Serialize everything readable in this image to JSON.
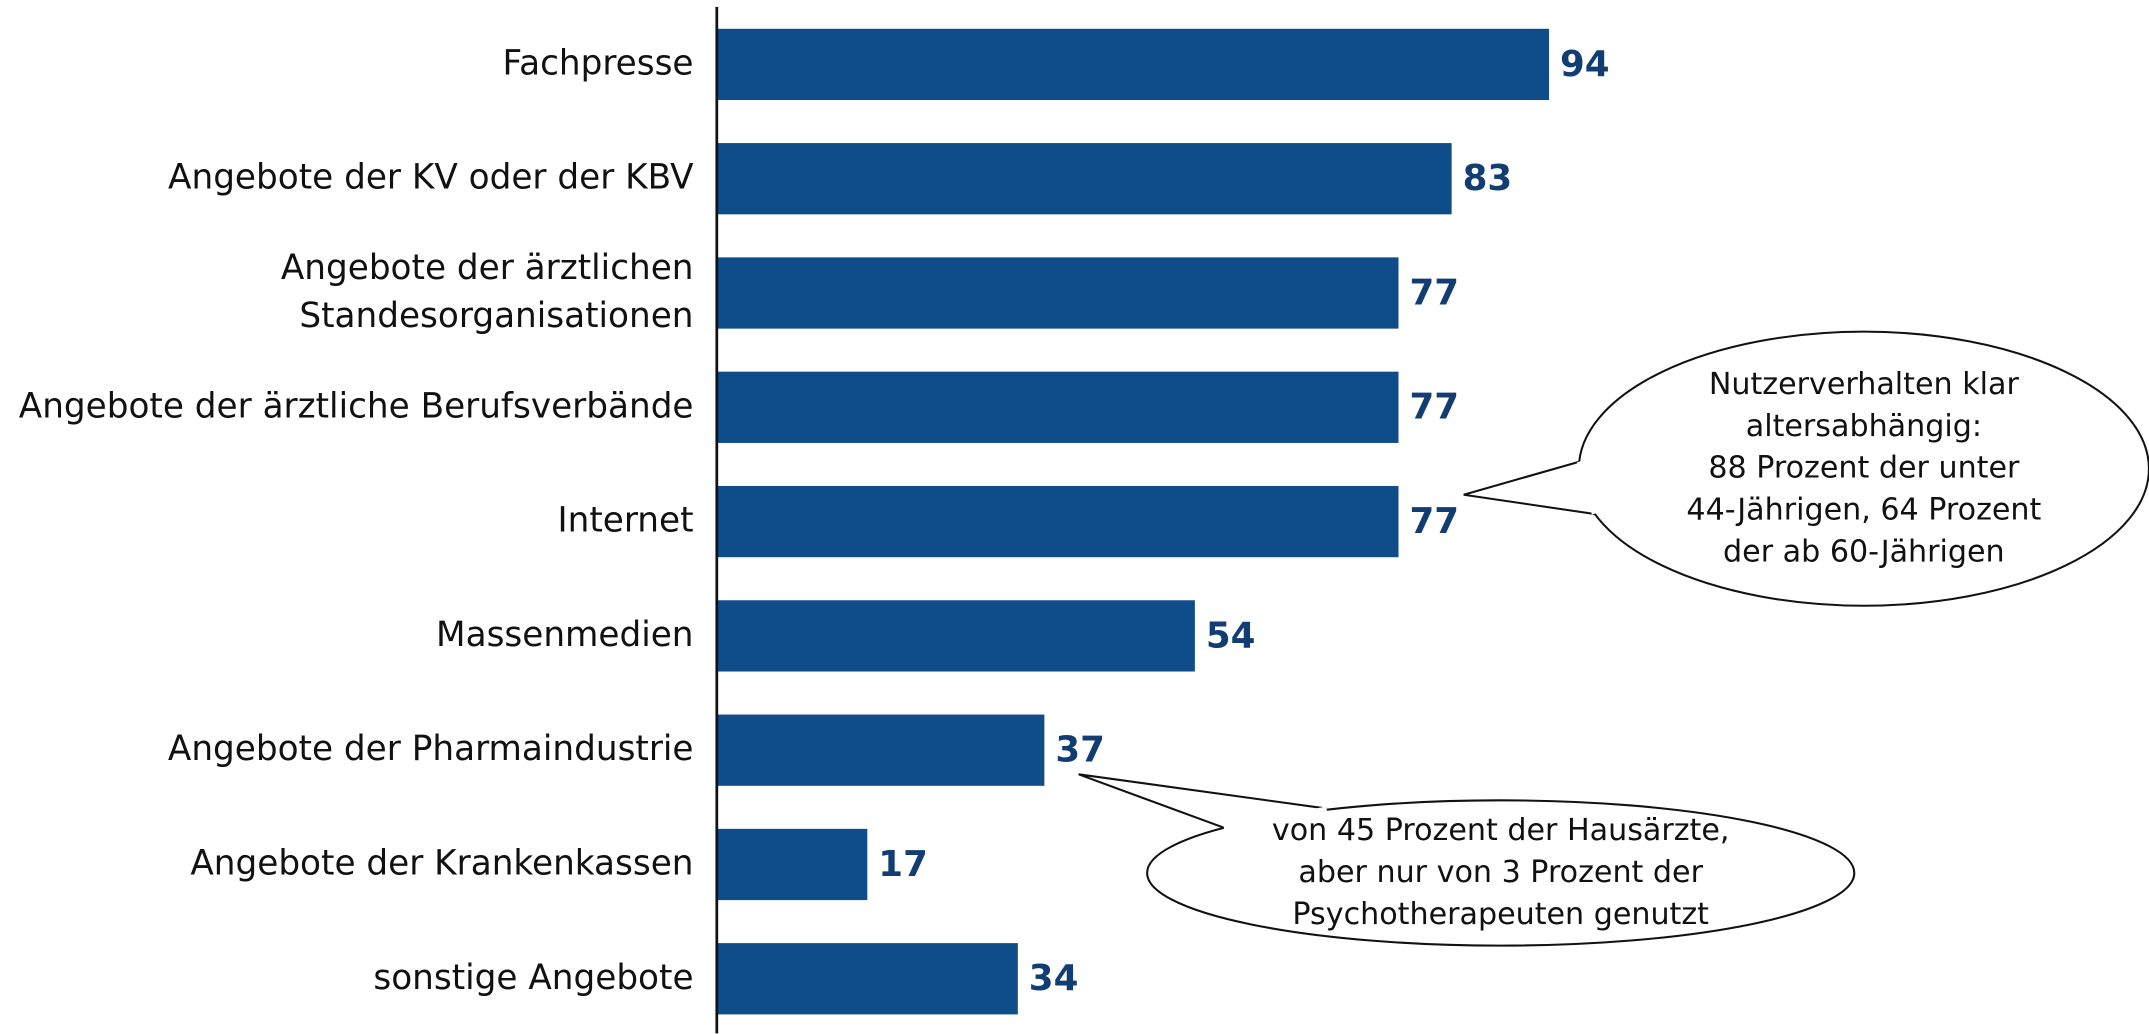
{
  "chart_data": {
    "type": "bar",
    "orientation": "horizontal",
    "color": "#0f4c8a",
    "categories": [
      "Fachpresse",
      "Angebote der KV oder der KBV",
      "Angebote der ärztlichen\nStandesorganisationen",
      "Angebote der ärztliche Berufsverbände",
      "Internet",
      "Massenmedien",
      "Angebote der Pharmaindustrie",
      "Angebote der Krankenkassen",
      "sonstige Angebote"
    ],
    "values": [
      94,
      83,
      77,
      77,
      77,
      54,
      37,
      17,
      34
    ],
    "xlim": [
      0,
      100
    ],
    "annotations": [
      {
        "text": "Nutzerverhalten klar\naltersabhängig:\n88 Prozent der unter\n44-Jährigen, 64 Prozent\nder ab 60-Jährigen"
      },
      {
        "text": "von 45 Prozent der Hausärzte,\naber nur von 3 Prozent der\nPsychotherapeuten genutzt"
      }
    ]
  }
}
